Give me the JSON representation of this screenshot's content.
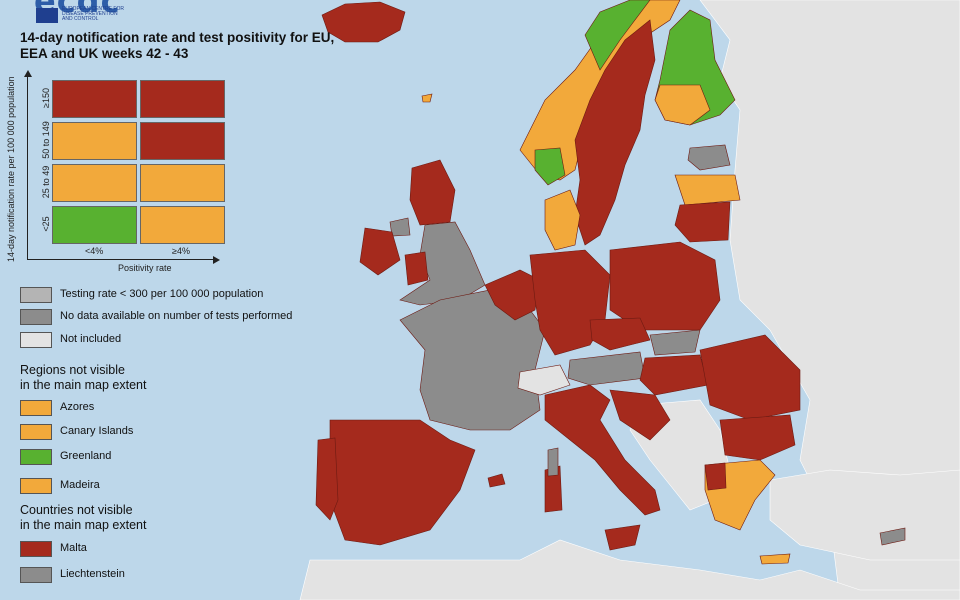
{
  "logo": {
    "letters": "ecdc",
    "org_lines": [
      "EUROPEAN CENTRE FOR",
      "DISEASE PREVENTION",
      "AND CONTROL"
    ]
  },
  "title": "14-day notification rate and test positivity for EU, EEA and UK weeks 42 - 43",
  "matrix": {
    "y_axis_label": "14-day notification rate per 100 000 population",
    "x_axis_label": "Positivity rate",
    "rows": [
      "≥150",
      "50 to 149",
      "25 to 49",
      "<25"
    ],
    "cols": [
      "<4%",
      "≥4%"
    ],
    "cells": [
      [
        "red",
        "red"
      ],
      [
        "orange",
        "red"
      ],
      [
        "orange",
        "orange"
      ],
      [
        "green",
        "orange"
      ]
    ]
  },
  "colors": {
    "red": "#a52a1d",
    "orange": "#f2a93b",
    "green": "#58b130",
    "grey_dark": "#8c8c8c",
    "grey_light": "#b4b4b4",
    "not_included": "#e3e3e3",
    "sea": "#bdd7ea",
    "border": "#6d1a12"
  },
  "legend_status": [
    {
      "label": "Testing rate < 300 per 100 000 population",
      "color": "grey_light"
    },
    {
      "label": "No data available on number of tests performed",
      "color": "grey_dark"
    },
    {
      "label": "Not included",
      "color": "not_included"
    }
  ],
  "regions_heading": [
    "Regions not visible",
    "in the main map extent"
  ],
  "regions": [
    {
      "label": "Azores",
      "color": "orange"
    },
    {
      "label": "Canary Islands",
      "color": "orange"
    },
    {
      "label": "Greenland",
      "color": "green"
    },
    {
      "label": "Madeira",
      "color": "orange"
    }
  ],
  "countries_heading": [
    "Countries not visible",
    "in the main map extent"
  ],
  "countries": [
    {
      "label": "Malta",
      "color": "red"
    },
    {
      "label": "Liechtenstein",
      "color": "grey_dark"
    }
  ]
}
